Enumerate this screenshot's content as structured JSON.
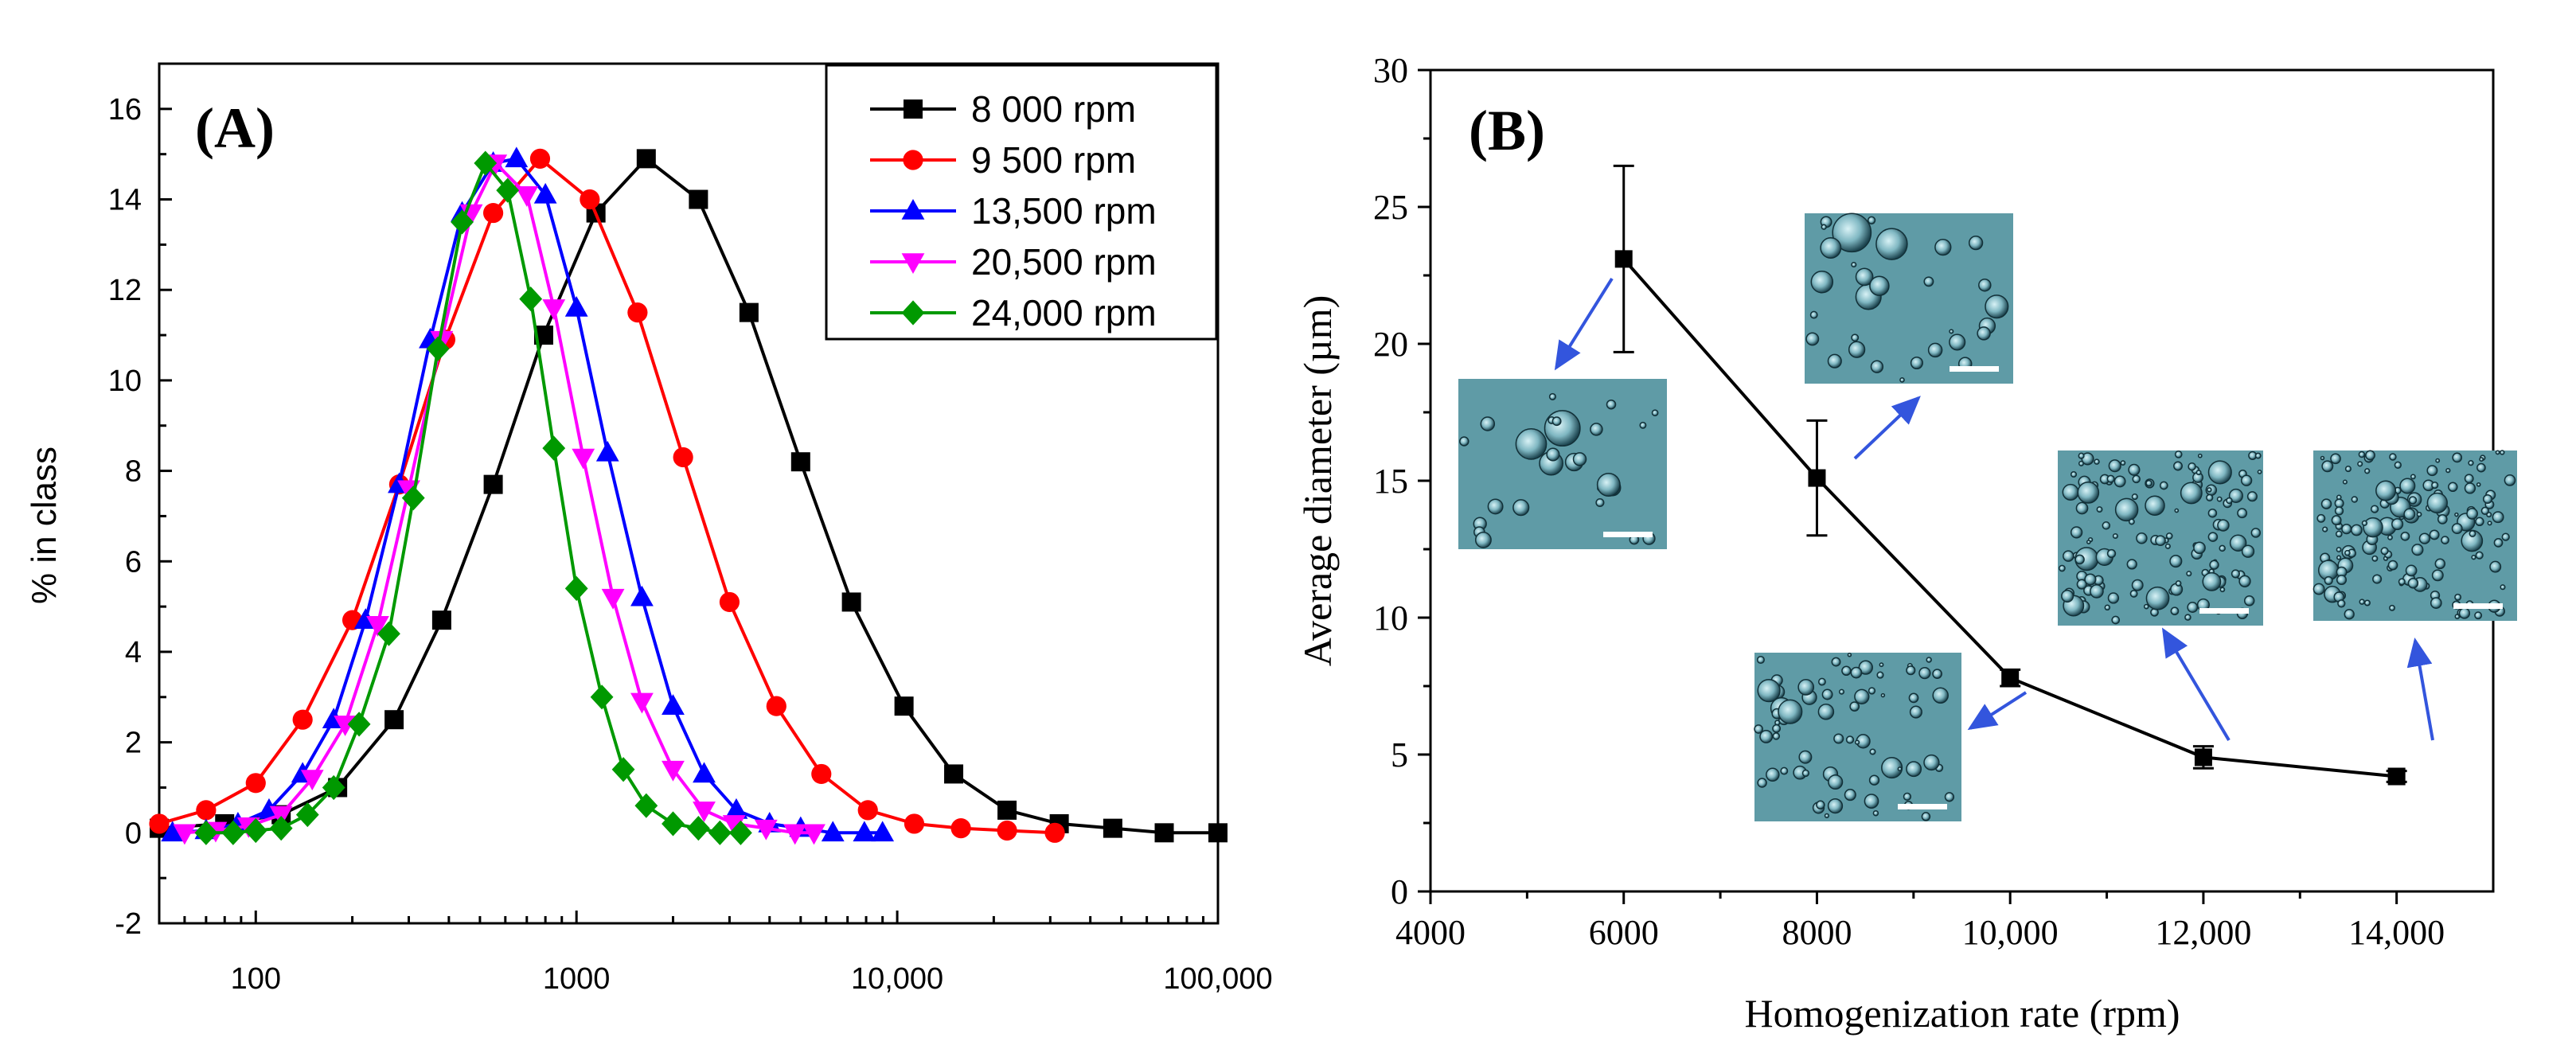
{
  "chart_data": [
    {
      "type": "line",
      "panel_label": "(A)",
      "xlabel": "",
      "ylabel": "% in class",
      "xscale": "log",
      "xlim": [
        50,
        100000
      ],
      "ylim": [
        -2,
        17
      ],
      "x_tick_labels": [
        "100",
        "1000",
        "10,000",
        "100,000"
      ],
      "x_tick_values": [
        100,
        1000,
        10000,
        100000
      ],
      "y_ticks": [
        -2,
        0,
        2,
        4,
        6,
        8,
        10,
        12,
        14,
        16
      ],
      "legend_position": "top-right",
      "series": [
        {
          "name": "8 000 rpm",
          "color": "#000000",
          "marker": "square",
          "x": [
            50,
            80,
            120,
            180,
            270,
            380,
            550,
            790,
            1150,
            1650,
            2400,
            3450,
            5000,
            7200,
            10500,
            15000,
            22000,
            32000,
            47000,
            68000,
            100000
          ],
          "y": [
            0.1,
            0.2,
            0.4,
            1.0,
            2.5,
            4.7,
            7.7,
            11.0,
            13.7,
            14.9,
            14.0,
            11.5,
            8.2,
            5.1,
            2.8,
            1.3,
            0.5,
            0.2,
            0.1,
            0.0,
            0.0
          ]
        },
        {
          "name": "9 500 rpm",
          "color": "#ff0000",
          "marker": "circle",
          "x": [
            50,
            70,
            100,
            140,
            200,
            280,
            390,
            550,
            770,
            1100,
            1550,
            2150,
            3000,
            4200,
            5800,
            8100,
            11300,
            15800,
            22000,
            31000
          ],
          "y": [
            0.2,
            0.5,
            1.1,
            2.5,
            4.7,
            7.7,
            10.9,
            13.7,
            14.9,
            14.0,
            11.5,
            8.3,
            5.1,
            2.8,
            1.3,
            0.5,
            0.2,
            0.1,
            0.05,
            0.0
          ]
        },
        {
          "name": "13,500 rpm",
          "color": "#0000ff",
          "marker": "triangle-up",
          "x": [
            55,
            70,
            88,
            110,
            140,
            175,
            220,
            280,
            350,
            440,
            550,
            650,
            800,
            1000,
            1250,
            1600,
            2000,
            2500,
            3150,
            4000,
            5000,
            6300,
            7900,
            9000
          ],
          "y": [
            0.0,
            0.05,
            0.2,
            0.5,
            1.3,
            2.5,
            4.7,
            7.7,
            10.9,
            13.7,
            14.8,
            14.9,
            14.1,
            11.6,
            8.4,
            5.2,
            2.8,
            1.3,
            0.5,
            0.2,
            0.1,
            0.0,
            0.0,
            0.0
          ]
        },
        {
          "name": "20,500 rpm",
          "color": "#ff00ff",
          "marker": "triangle-down",
          "x": [
            60,
            75,
            95,
            120,
            150,
            190,
            240,
            300,
            380,
            470,
            560,
            700,
            850,
            1050,
            1300,
            1600,
            2000,
            2500,
            3100,
            3900,
            4800,
            5500
          ],
          "y": [
            0.0,
            0.05,
            0.15,
            0.4,
            1.2,
            2.4,
            4.6,
            7.6,
            10.9,
            13.7,
            14.8,
            14.1,
            11.6,
            8.3,
            5.2,
            2.9,
            1.4,
            0.5,
            0.2,
            0.1,
            0.0,
            0.0
          ]
        },
        {
          "name": "24,000 rpm",
          "color": "#009900",
          "marker": "diamond",
          "x": [
            70,
            85,
            100,
            120,
            145,
            175,
            210,
            260,
            310,
            370,
            440,
            520,
            610,
            720,
            850,
            1000,
            1200,
            1400,
            1650,
            2000,
            2400,
            2800,
            3250
          ],
          "y": [
            0.0,
            0.0,
            0.05,
            0.1,
            0.4,
            1.0,
            2.4,
            4.4,
            7.4,
            10.7,
            13.5,
            14.8,
            14.2,
            11.8,
            8.5,
            5.4,
            3.0,
            1.4,
            0.6,
            0.2,
            0.1,
            0.0,
            0.0
          ]
        }
      ]
    },
    {
      "type": "line",
      "panel_label": "(B)",
      "xlabel": "Homogenization rate (rpm)",
      "ylabel": "Average diameter (µm)",
      "xlim": [
        4000,
        15000
      ],
      "ylim": [
        0,
        30
      ],
      "x_tick_labels": [
        "4000",
        "6000",
        "8000",
        "10,000",
        "12,000",
        "14,000"
      ],
      "x_tick_values": [
        4000,
        6000,
        8000,
        10000,
        12000,
        14000
      ],
      "y_ticks": [
        0,
        5,
        10,
        15,
        20,
        25,
        30
      ],
      "series": [
        {
          "color": "#000000",
          "marker": "square",
          "x": [
            6000,
            8000,
            10000,
            12000,
            14000
          ],
          "y": [
            23.1,
            15.1,
            7.8,
            4.9,
            4.2
          ],
          "error": [
            3.4,
            2.1,
            0.3,
            0.4,
            0.2
          ]
        }
      ],
      "micrograph_insets": 5,
      "arrow_color": "#3355dd"
    }
  ]
}
